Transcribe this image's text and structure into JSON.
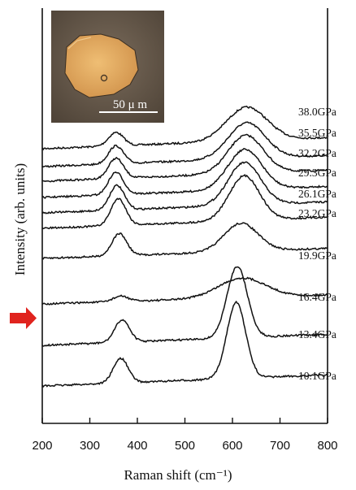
{
  "chart_data": {
    "type": "line",
    "title": "",
    "xlabel": "Raman shift (cm⁻¹)",
    "ylabel": "Intensity (arb. units)",
    "xlim": [
      200,
      800
    ],
    "x_ticks": [
      "200",
      "300",
      "400",
      "500",
      "600",
      "700",
      "800"
    ],
    "grid": false,
    "y_ticks_shown": false,
    "series": [
      {
        "name": "38.0GPa",
        "peak1": 355,
        "peak2": 630,
        "height1": 0.3,
        "height2": 0.75,
        "width2": 60,
        "relative_intensity": 1.0
      },
      {
        "name": "35.5GPa",
        "peak1": 355,
        "peak2": 630,
        "height1": 0.4,
        "height2": 0.8,
        "width2": 55,
        "relative_intensity": 1.0
      },
      {
        "name": "32.2GPa",
        "peak1": 355,
        "peak2": 628,
        "height1": 0.45,
        "height2": 0.85,
        "width2": 52,
        "relative_intensity": 1.0
      },
      {
        "name": "29.3GPa",
        "peak1": 355,
        "peak2": 626,
        "height1": 0.5,
        "height2": 0.9,
        "width2": 50,
        "relative_intensity": 1.0
      },
      {
        "name": "26.1GPa",
        "peak1": 357,
        "peak2": 625,
        "height1": 0.55,
        "height2": 0.95,
        "width2": 48,
        "relative_intensity": 1.0
      },
      {
        "name": "23.2GPa",
        "peak1": 360,
        "peak2": 625,
        "height1": 0.6,
        "height2": 1.0,
        "width2": 45,
        "relative_intensity": 1.0
      },
      {
        "name": "19.9GPa",
        "peak1": 362,
        "peak2": 618,
        "height1": 0.55,
        "height2": 0.7,
        "width2": 50,
        "relative_intensity": 0.9
      },
      {
        "name": "16.4GPa",
        "peak1": 365,
        "peak2": 620,
        "height1": 0.15,
        "height2": 0.55,
        "width2": 70,
        "relative_intensity": 0.8
      },
      {
        "name": "13.4GPa",
        "peak1": 368,
        "peak2": 610,
        "height1": 0.5,
        "height2": 1.6,
        "width2": 30,
        "relative_intensity": 1.0
      },
      {
        "name": "10.1GPa",
        "peak1": 365,
        "peak2": 608,
        "height1": 0.55,
        "height2": 1.7,
        "width2": 28,
        "relative_intensity": 1.0
      }
    ],
    "annotations": {
      "inset_scale_label": "50 μ m",
      "arrow_marks_series": "16.4GPa"
    }
  },
  "colors": {
    "line": "#111111",
    "arrow": "#e0231e",
    "inset_background": "#66594b",
    "crystal": "#e0a85e",
    "scale_bar": "#ffffff"
  }
}
